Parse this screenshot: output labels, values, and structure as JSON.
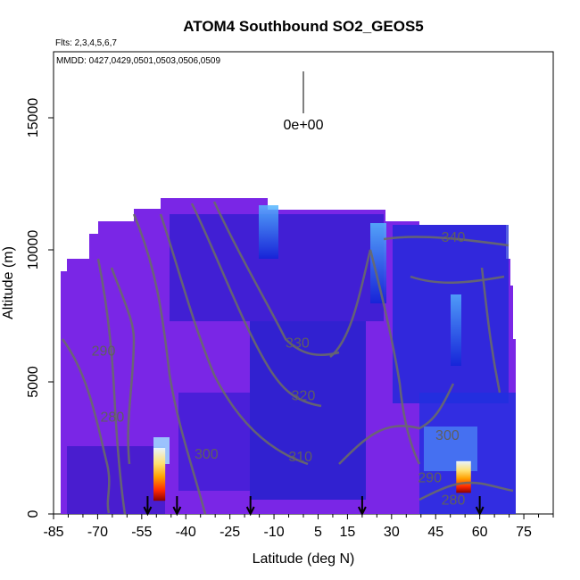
{
  "chart_data": {
    "type": "heatmap",
    "title": "ATOM4 Southbound SO2_GEOS5",
    "flights_note": "Flts: 2,3,4,5,6,7",
    "dates_note": "MMDD: 0427,0429,0501,0503,0506,0509",
    "xlabel": "Latitude (deg N)",
    "ylabel": "Altitude (m)",
    "xlim": [
      -85,
      85
    ],
    "ylim": [
      0,
      17500
    ],
    "x_ticks": [
      -85,
      -70,
      -55,
      -40,
      -25,
      -10,
      5,
      15,
      30,
      45,
      60,
      75
    ],
    "y_ticks": [
      0,
      5000,
      10000,
      15000
    ],
    "colorbar_label": "0e+00",
    "contour_levels": [
      280,
      290,
      300,
      310,
      320,
      330,
      340
    ],
    "contour_labels": [
      {
        "text": "290",
        "lat": -68,
        "alt": 6000
      },
      {
        "text": "280",
        "lat": -65,
        "alt": 3500
      },
      {
        "text": "300",
        "lat": -33,
        "alt": 2100
      },
      {
        "text": "310",
        "lat": -1,
        "alt": 2000
      },
      {
        "text": "320",
        "lat": 0,
        "alt": 4300
      },
      {
        "text": "330",
        "lat": -2,
        "alt": 6300
      },
      {
        "text": "340",
        "lat": 51,
        "alt": 10300
      },
      {
        "text": "300",
        "lat": 49,
        "alt": 2800
      },
      {
        "text": "290",
        "lat": 43,
        "alt": 1200
      },
      {
        "text": "280",
        "lat": 51,
        "alt": 350
      }
    ],
    "flight_markers_lat": [
      -53,
      -43,
      -18,
      20,
      60
    ],
    "hotspots": [
      {
        "lat_min": -51,
        "lat_max": -47,
        "alt_min": 500,
        "alt_max": 2500
      },
      {
        "lat_min": 52,
        "lat_max": 57,
        "alt_min": 800,
        "alt_max": 2000
      }
    ]
  }
}
